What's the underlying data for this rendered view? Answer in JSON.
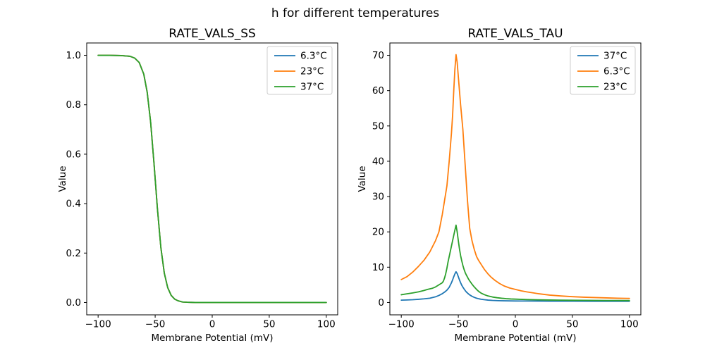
{
  "figure": {
    "suptitle": "h for different temperatures",
    "background": "#ffffff",
    "text_color": "#000000",
    "spine_color": "#000000"
  },
  "chart_data": [
    {
      "type": "line",
      "title": "RATE_VALS_SS",
      "xlabel": "Membrane Potential (mV)",
      "ylabel": "Value",
      "xlim": [
        -110,
        110
      ],
      "ylim": [
        -0.05,
        1.05
      ],
      "grid": false,
      "legend_loc": "upper right",
      "xticks": {
        "values": [
          -100,
          -50,
          0,
          50,
          100
        ],
        "labels": [
          "−100",
          "−50",
          "0",
          "50",
          "100"
        ]
      },
      "yticks": {
        "values": [
          0.0,
          0.2,
          0.4,
          0.6,
          0.8,
          1.0
        ],
        "labels": [
          "0.0",
          "0.2",
          "0.4",
          "0.6",
          "0.8",
          "1.0"
        ]
      },
      "series": [
        {
          "name": "6.3°C",
          "color": "#1f77b4",
          "x": [
            -100,
            -90,
            -80,
            -72,
            -68,
            -64,
            -60,
            -57,
            -54,
            -51,
            -48,
            -45,
            -42,
            -39,
            -36,
            -33,
            -30,
            -26,
            -22,
            -15,
            -5,
            10,
            30,
            50,
            75,
            100
          ],
          "y": [
            1.0,
            1.0,
            0.999,
            0.996,
            0.989,
            0.971,
            0.924,
            0.851,
            0.731,
            0.562,
            0.378,
            0.222,
            0.119,
            0.06,
            0.029,
            0.014,
            0.007,
            0.002,
            0.001,
            0.0,
            0.0,
            0.0,
            0.0,
            0.0,
            0.0,
            0.0
          ]
        },
        {
          "name": "23°C",
          "color": "#ff7f0e",
          "x": [
            -100,
            -90,
            -80,
            -72,
            -68,
            -64,
            -60,
            -57,
            -54,
            -51,
            -48,
            -45,
            -42,
            -39,
            -36,
            -33,
            -30,
            -26,
            -22,
            -15,
            -5,
            10,
            30,
            50,
            75,
            100
          ],
          "y": [
            1.0,
            1.0,
            0.999,
            0.996,
            0.989,
            0.971,
            0.924,
            0.851,
            0.731,
            0.562,
            0.378,
            0.222,
            0.119,
            0.06,
            0.029,
            0.014,
            0.007,
            0.002,
            0.001,
            0.0,
            0.0,
            0.0,
            0.0,
            0.0,
            0.0,
            0.0
          ]
        },
        {
          "name": "37°C",
          "color": "#2ca02c",
          "x": [
            -100,
            -90,
            -80,
            -72,
            -68,
            -64,
            -60,
            -57,
            -54,
            -51,
            -48,
            -45,
            -42,
            -39,
            -36,
            -33,
            -30,
            -26,
            -22,
            -15,
            -5,
            10,
            30,
            50,
            75,
            100
          ],
          "y": [
            1.0,
            1.0,
            0.999,
            0.996,
            0.989,
            0.971,
            0.924,
            0.851,
            0.731,
            0.562,
            0.378,
            0.222,
            0.119,
            0.06,
            0.029,
            0.014,
            0.007,
            0.002,
            0.001,
            0.0,
            0.0,
            0.0,
            0.0,
            0.0,
            0.0,
            0.0
          ]
        }
      ]
    },
    {
      "type": "line",
      "title": "RATE_VALS_TAU",
      "xlabel": "Membrane Potential (mV)",
      "ylabel": "Value",
      "xlim": [
        -110,
        110
      ],
      "ylim": [
        -3.5,
        73.5
      ],
      "grid": false,
      "legend_loc": "upper right",
      "xticks": {
        "values": [
          -100,
          -50,
          0,
          50,
          100
        ],
        "labels": [
          "−100",
          "−50",
          "0",
          "50",
          "100"
        ]
      },
      "yticks": {
        "values": [
          0,
          10,
          20,
          30,
          40,
          50,
          60,
          70
        ],
        "labels": [
          "0",
          "10",
          "20",
          "30",
          "40",
          "50",
          "60",
          "70"
        ]
      },
      "series": [
        {
          "name": "37°C",
          "color": "#1f77b4",
          "x": [
            -100,
            -95,
            -90,
            -85,
            -80,
            -75,
            -70,
            -67,
            -64,
            -62,
            -60,
            -58,
            -56,
            -55,
            -54,
            -53,
            -52,
            -51,
            -50,
            -49,
            -48,
            -47,
            -46,
            -45,
            -44,
            -43,
            -42,
            -41,
            -40,
            -38,
            -36,
            -34,
            -32,
            -30,
            -27,
            -24,
            -20,
            -15,
            -10,
            -5,
            0,
            10,
            20,
            30,
            40,
            50,
            70,
            100
          ],
          "y": [
            0.66,
            0.72,
            0.79,
            0.9,
            1.03,
            1.22,
            1.6,
            2.0,
            2.5,
            2.95,
            3.5,
            4.3,
            5.6,
            6.4,
            7.3,
            8.1,
            8.7,
            8.2,
            7.3,
            6.4,
            5.6,
            4.9,
            4.35,
            3.85,
            3.4,
            3.0,
            2.7,
            2.4,
            2.15,
            1.75,
            1.45,
            1.22,
            1.05,
            0.92,
            0.78,
            0.68,
            0.59,
            0.52,
            0.48,
            0.45,
            0.43,
            0.41,
            0.4,
            0.38,
            0.37,
            0.36,
            0.35,
            0.34
          ]
        },
        {
          "name": "6.3°C",
          "color": "#ff7f0e",
          "x": [
            -100,
            -95,
            -90,
            -85,
            -80,
            -75,
            -70,
            -67,
            -64,
            -62,
            -60,
            -58,
            -56,
            -55,
            -54,
            -53,
            -52,
            -51,
            -50,
            -49,
            -48,
            -47,
            -46,
            -45,
            -44,
            -43,
            -42,
            -41,
            -40,
            -38,
            -36,
            -34,
            -32,
            -30,
            -27,
            -24,
            -21,
            -18,
            -14,
            -10,
            -5,
            0,
            5,
            10,
            15,
            20,
            30,
            40,
            50,
            60,
            70,
            80,
            90,
            100
          ],
          "y": [
            6.5,
            7.3,
            8.6,
            10.2,
            12.0,
            14.3,
            17.5,
            20.0,
            25.0,
            29.0,
            33.0,
            40.0,
            48.0,
            53.0,
            60.0,
            66.0,
            70.2,
            68.0,
            64.0,
            60.0,
            56.0,
            52.5,
            49.0,
            44.0,
            39.0,
            34.0,
            29.0,
            25.0,
            21.0,
            17.5,
            15.0,
            13.0,
            11.8,
            10.8,
            9.3,
            8.1,
            7.1,
            6.3,
            5.4,
            4.7,
            4.1,
            3.7,
            3.3,
            3.0,
            2.75,
            2.5,
            2.1,
            1.85,
            1.65,
            1.5,
            1.4,
            1.3,
            1.2,
            1.15
          ]
        },
        {
          "name": "23°C",
          "color": "#2ca02c",
          "x": [
            -100,
            -95,
            -90,
            -85,
            -80,
            -77,
            -73,
            -70,
            -67,
            -64,
            -63,
            -62,
            -61,
            -60,
            -59,
            -58,
            -57,
            -56,
            -55,
            -54,
            -53,
            -52,
            -51,
            -50,
            -49,
            -48,
            -47,
            -46,
            -45,
            -44,
            -43,
            -42,
            -41,
            -40,
            -38,
            -36,
            -34,
            -32,
            -30,
            -27,
            -24,
            -20,
            -16,
            -12,
            -8,
            -4,
            0,
            10,
            20,
            30,
            40,
            50,
            60,
            70,
            80,
            90,
            100
          ],
          "y": [
            2.2,
            2.45,
            2.7,
            3.0,
            3.4,
            3.7,
            4.0,
            4.4,
            5.0,
            5.6,
            6.1,
            7.0,
            8.2,
            9.7,
            11.5,
            13.0,
            14.5,
            16.0,
            17.5,
            19.0,
            20.5,
            21.9,
            20.0,
            17.5,
            15.2,
            13.3,
            11.8,
            10.5,
            9.4,
            8.5,
            7.8,
            7.2,
            6.6,
            6.1,
            5.2,
            4.4,
            3.7,
            3.1,
            2.65,
            2.2,
            1.85,
            1.55,
            1.35,
            1.2,
            1.08,
            1.0,
            0.95,
            0.83,
            0.76,
            0.7,
            0.66,
            0.63,
            0.61,
            0.59,
            0.57,
            0.56,
            0.55
          ]
        }
      ]
    }
  ]
}
